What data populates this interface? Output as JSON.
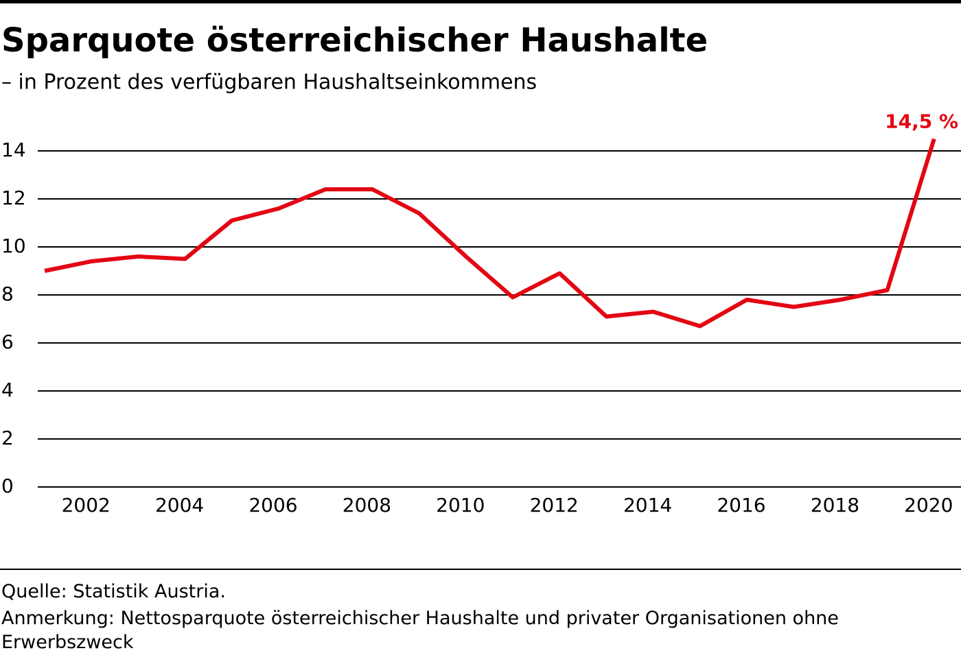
{
  "chart_data": {
    "type": "line",
    "title": "Sparquote österreichischer Haushalte",
    "subtitle": "– in Prozent des verfügbaren Haushaltseinkommens",
    "categories": [
      null,
      "2002",
      null,
      "2004",
      null,
      "2006",
      null,
      "2008",
      null,
      "2010",
      null,
      "2012",
      null,
      "2014",
      null,
      "2016",
      null,
      "2018",
      null,
      "2020"
    ],
    "series": [
      {
        "name": "Sparquote",
        "color": "#e30613",
        "values": [
          9.0,
          9.4,
          9.6,
          9.5,
          11.1,
          11.6,
          12.4,
          12.4,
          11.4,
          9.6,
          7.9,
          8.9,
          7.1,
          7.3,
          6.7,
          7.8,
          7.5,
          7.8,
          8.2,
          14.5
        ]
      }
    ],
    "annotation": "14,5 %",
    "ylim": [
      0,
      15
    ],
    "yticks": [
      0,
      2,
      4,
      6,
      8,
      10,
      12,
      14
    ],
    "grid": true,
    "source": "Quelle: Statistik Austria.",
    "note": "Anmerkung: Nettosparquote österreichischer Haushalte und privater Organisationen ohne Erwerbszweck"
  }
}
